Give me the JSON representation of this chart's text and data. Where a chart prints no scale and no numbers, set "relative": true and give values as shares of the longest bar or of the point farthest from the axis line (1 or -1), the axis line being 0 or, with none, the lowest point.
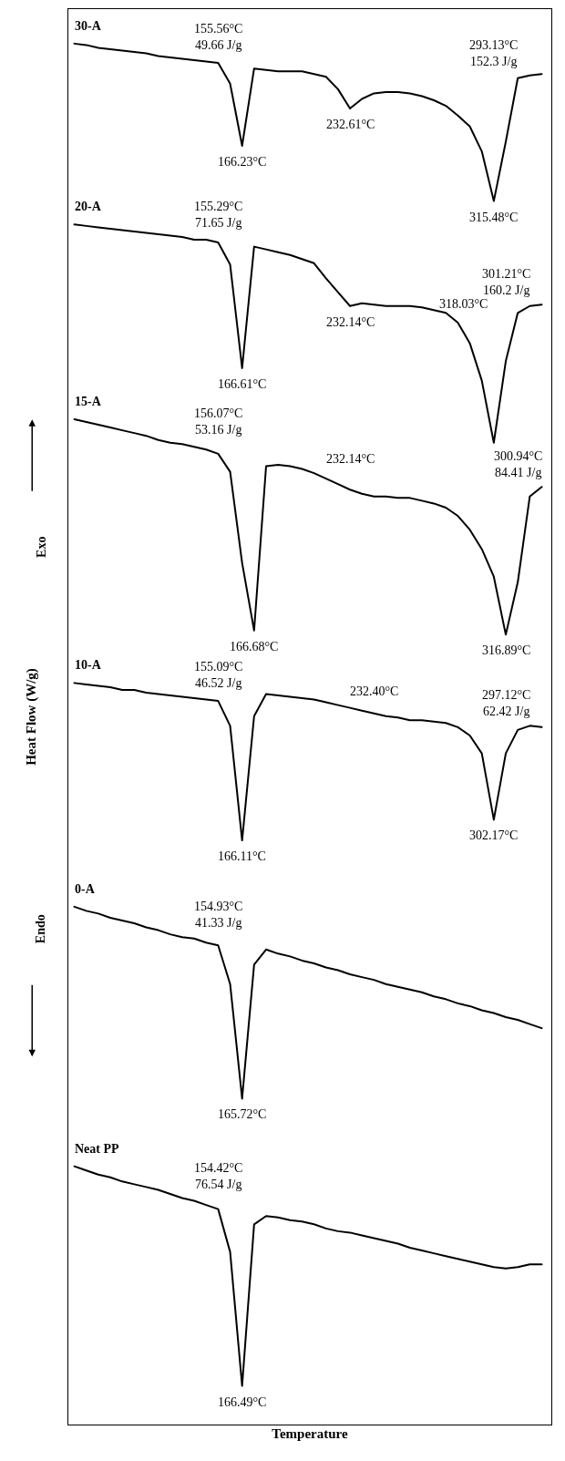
{
  "chart_data": {
    "type": "line",
    "relative": true,
    "xlabel": "Temperature",
    "ylabel": "Heat Flow (W/g)",
    "tick_labels": false,
    "legend": false,
    "marker": "none",
    "line_style": "solid",
    "categories": [
      null,
      null,
      null,
      null,
      null,
      null,
      null,
      null,
      null,
      null,
      null,
      null,
      null,
      null,
      null,
      null,
      null,
      null,
      null,
      null,
      null,
      null,
      null,
      null,
      null,
      null,
      null,
      null,
      null,
      null,
      null,
      null,
      null,
      null,
      null,
      null,
      null,
      null,
      null,
      null
    ],
    "series": [
      {
        "name": "30-A",
        "color": "#000000",
        "values": [
          1.0,
          0.999,
          0.997,
          0.996,
          0.995,
          0.994,
          0.993,
          0.991,
          0.99,
          0.989,
          0.988,
          0.987,
          0.986,
          0.971,
          0.926,
          0.982,
          0.981,
          0.98,
          0.98,
          0.98,
          0.978,
          0.976,
          0.967,
          0.953,
          0.96,
          0.964,
          0.965,
          0.965,
          0.964,
          0.962,
          0.959,
          0.955,
          0.948,
          0.94,
          0.922,
          0.886,
          0.929,
          0.975,
          0.977,
          0.978
        ]
      },
      {
        "name": "20-A",
        "color": "#000000",
        "values": [
          0.869,
          0.868,
          0.867,
          0.866,
          0.865,
          0.864,
          0.863,
          0.862,
          0.861,
          0.86,
          0.858,
          0.858,
          0.856,
          0.84,
          0.765,
          0.853,
          0.851,
          0.849,
          0.847,
          0.844,
          0.841,
          0.83,
          0.82,
          0.81,
          0.812,
          0.811,
          0.81,
          0.81,
          0.81,
          0.809,
          0.807,
          0.805,
          0.798,
          0.783,
          0.756,
          0.711,
          0.77,
          0.805,
          0.81,
          0.811
        ]
      },
      {
        "name": "15-A",
        "color": "#000000",
        "values": [
          0.728,
          0.726,
          0.724,
          0.722,
          0.72,
          0.718,
          0.716,
          0.713,
          0.711,
          0.71,
          0.708,
          0.706,
          0.703,
          0.69,
          0.624,
          0.575,
          0.694,
          0.695,
          0.694,
          0.692,
          0.689,
          0.685,
          0.681,
          0.677,
          0.674,
          0.672,
          0.672,
          0.671,
          0.671,
          0.669,
          0.667,
          0.664,
          0.658,
          0.648,
          0.634,
          0.614,
          0.572,
          0.61,
          0.672,
          0.679
        ]
      },
      {
        "name": "10-A",
        "color": "#000000",
        "values": [
          0.537,
          0.536,
          0.535,
          0.534,
          0.532,
          0.532,
          0.53,
          0.529,
          0.528,
          0.527,
          0.526,
          0.525,
          0.524,
          0.506,
          0.423,
          0.513,
          0.529,
          0.528,
          0.527,
          0.526,
          0.525,
          0.523,
          0.521,
          0.519,
          0.517,
          0.515,
          0.513,
          0.512,
          0.51,
          0.51,
          0.509,
          0.508,
          0.505,
          0.499,
          0.486,
          0.438,
          0.486,
          0.503,
          0.506,
          0.505
        ]
      },
      {
        "name": "0-A",
        "color": "#000000",
        "values": [
          0.375,
          0.372,
          0.37,
          0.367,
          0.365,
          0.363,
          0.36,
          0.358,
          0.355,
          0.353,
          0.352,
          0.349,
          0.347,
          0.319,
          0.236,
          0.333,
          0.344,
          0.341,
          0.339,
          0.336,
          0.334,
          0.331,
          0.329,
          0.326,
          0.324,
          0.322,
          0.319,
          0.317,
          0.315,
          0.313,
          0.31,
          0.308,
          0.305,
          0.303,
          0.3,
          0.298,
          0.295,
          0.293,
          0.29,
          0.287
        ]
      },
      {
        "name": "Neat PP",
        "color": "#000000",
        "values": [
          0.187,
          0.184,
          0.181,
          0.179,
          0.176,
          0.174,
          0.172,
          0.17,
          0.167,
          0.164,
          0.162,
          0.159,
          0.156,
          0.125,
          0.028,
          0.145,
          0.151,
          0.15,
          0.148,
          0.147,
          0.145,
          0.142,
          0.14,
          0.139,
          0.137,
          0.135,
          0.133,
          0.131,
          0.128,
          0.126,
          0.124,
          0.122,
          0.12,
          0.118,
          0.116,
          0.114,
          0.113,
          0.114,
          0.116,
          0.116
        ]
      }
    ],
    "annotations": [
      "155.56°C\n49.66 J/g",
      "166.23°C",
      "232.61°C",
      "293.13°C\n152.3 J/g",
      "315.48°C",
      "155.29°C\n71.65 J/g",
      "166.61°C",
      "232.14°C",
      "301.21°C\n160.2 J/g",
      "318.03°C",
      "156.07°C\n53.16 J/g",
      "166.68°C",
      "232.14°C",
      "300.94°C\n84.41 J/g",
      "316.89°C",
      "155.09°C\n46.52 J/g",
      "166.11°C",
      "232.40°C",
      "297.12°C\n62.42 J/g",
      "302.17°C",
      "154.93°C\n41.33 J/g",
      "165.72°C",
      "154.42°C\n76.54 J/g",
      "166.49°C",
      "Exo",
      "Endo"
    ]
  }
}
